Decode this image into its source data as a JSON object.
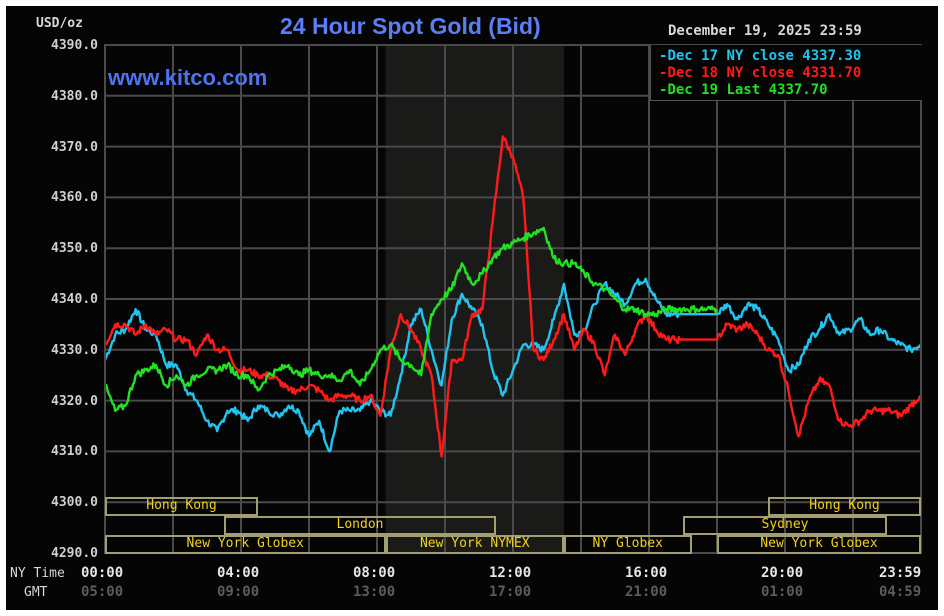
{
  "header": {
    "title": "24 Hour Spot Gold (Bid)",
    "website": "www.kitco.com",
    "units": "USD/oz",
    "datestamp": "December 19, 2025 23:59"
  },
  "legend": [
    {
      "label": "Dec 17 NY close 4337.30",
      "color": "#21c4ef"
    },
    {
      "label": "Dec 18 NY close 4331.70",
      "color": "#ff1a1a"
    },
    {
      "label": "Dec 19 Last 4337.70",
      "color": "#22e022"
    }
  ],
  "axis": {
    "y_labels": [
      "4390.0",
      "4380.0",
      "4370.0",
      "4360.0",
      "4350.0",
      "4340.0",
      "4330.0",
      "4320.0",
      "4310.0",
      "4300.0",
      "4290.0"
    ],
    "x_row_label_ny": "NY Time",
    "x_row_label_gmt": "GMT",
    "x_ny": [
      "00:00",
      "04:00",
      "08:00",
      "12:00",
      "16:00",
      "20:00",
      "23:59"
    ],
    "x_gmt": [
      "05:00",
      "09:00",
      "13:00",
      "17:00",
      "21:00",
      "01:00",
      "04:59"
    ]
  },
  "sessions": [
    {
      "name": "Hong Kong",
      "row": 0,
      "start": 0,
      "end": 4.5
    },
    {
      "name": "London",
      "row": 1,
      "start": 3.5,
      "end": 11.5
    },
    {
      "name": "New York Globex",
      "row": 2,
      "start": 0,
      "end": 8.25
    },
    {
      "name": "New York NYMEX",
      "row": 2,
      "start": 8.25,
      "end": 13.5
    },
    {
      "name": "NY Globex",
      "row": 2,
      "start": 13.5,
      "end": 17.25
    },
    {
      "name": "New York Globex",
      "row": 2,
      "start": 18.0,
      "end": 24
    },
    {
      "name": "Hong Kong",
      "row": 0,
      "start": 19.5,
      "end": 24
    },
    {
      "name": "Sydney",
      "row": 1,
      "start": 17.0,
      "end": 23.0
    }
  ],
  "chart_data": {
    "type": "line",
    "title": "24 Hour Spot Gold (Bid)",
    "xlabel": "NY Time / GMT",
    "ylabel": "USD/oz",
    "ylim": [
      4290,
      4390
    ],
    "xlim_hours": [
      0,
      24
    ],
    "x_ticks": [
      "00:00",
      "04:00",
      "08:00",
      "12:00",
      "16:00",
      "20:00",
      "23:59"
    ],
    "grid": true,
    "shaded_region_hours": [
      8.25,
      13.5
    ],
    "legend_position": "top-right",
    "series": [
      {
        "name": "Dec 17 NY close 4337.30",
        "color": "#21c4ef",
        "x": [
          0,
          0.3,
          0.6,
          0.9,
          1.2,
          1.5,
          1.8,
          2.1,
          2.4,
          2.7,
          3.0,
          3.3,
          3.6,
          3.9,
          4.2,
          4.5,
          4.8,
          5.1,
          5.4,
          5.7,
          6.0,
          6.3,
          6.6,
          6.9,
          7.2,
          7.5,
          7.8,
          8.1,
          8.4,
          8.7,
          9.0,
          9.3,
          9.6,
          9.9,
          10.2,
          10.5,
          10.8,
          11.1,
          11.4,
          11.7,
          12.0,
          12.3,
          12.6,
          12.9,
          13.2,
          13.5,
          13.8,
          14.1,
          14.4,
          14.7,
          15.0,
          15.3,
          15.6,
          15.9,
          16.2,
          16.5,
          16.8,
          17.1,
          17.4,
          17.7,
          18.0,
          18.3,
          18.6,
          18.9,
          19.2,
          19.5,
          19.8,
          20.1,
          20.4,
          20.7,
          21.0,
          21.3,
          21.6,
          21.9,
          22.2,
          22.5,
          22.8,
          23.1,
          23.4,
          23.7,
          23.98
        ],
        "values": [
          4328,
          4333,
          4334,
          4338,
          4334,
          4333,
          4327,
          4327,
          4322,
          4320,
          4316,
          4314,
          4318,
          4318,
          4316,
          4319,
          4318,
          4317,
          4319,
          4318,
          4313,
          4316,
          4310,
          4318,
          4318,
          4318,
          4320,
          4318,
          4317,
          4325,
          4335,
          4338,
          4330,
          4323,
          4336,
          4341,
          4338,
          4335,
          4326,
          4321,
          4326,
          4331,
          4331,
          4330,
          4336,
          4343,
          4333,
          4334,
          4339,
          4343,
          4341,
          4339,
          4343,
          4344,
          4340,
          4337,
          4337,
          4337,
          4337,
          4337,
          4337,
          4339,
          4336,
          4339,
          4338,
          4335,
          4332,
          4326,
          4327,
          4332,
          4334,
          4337,
          4333,
          4334,
          4336,
          4333,
          4334,
          4332,
          4331,
          4330,
          4331
        ]
      },
      {
        "name": "Dec 18 NY close 4331.70",
        "color": "#ff1a1a",
        "x": [
          0,
          0.3,
          0.6,
          0.9,
          1.2,
          1.5,
          1.8,
          2.1,
          2.4,
          2.7,
          3.0,
          3.3,
          3.6,
          3.9,
          4.2,
          4.5,
          4.8,
          5.1,
          5.4,
          5.7,
          6.0,
          6.3,
          6.6,
          6.9,
          7.2,
          7.5,
          7.8,
          8.1,
          8.4,
          8.7,
          9.0,
          9.3,
          9.6,
          9.9,
          10.2,
          10.5,
          10.8,
          11.1,
          11.4,
          11.7,
          12.0,
          12.3,
          12.6,
          12.9,
          13.2,
          13.5,
          13.8,
          14.1,
          14.4,
          14.7,
          15.0,
          15.3,
          15.6,
          15.9,
          16.2,
          16.5,
          16.8,
          17.1,
          17.4,
          17.7,
          18.0,
          18.3,
          18.6,
          18.9,
          19.2,
          19.5,
          19.8,
          20.1,
          20.4,
          20.7,
          21.0,
          21.3,
          21.6,
          21.9,
          22.2,
          22.5,
          22.8,
          23.1,
          23.4,
          23.7,
          23.98
        ],
        "values": [
          4331,
          4335,
          4335,
          4333,
          4335,
          4333,
          4334,
          4332,
          4332,
          4329,
          4333,
          4330,
          4330,
          4326,
          4326,
          4325,
          4325,
          4324,
          4322,
          4322,
          4323,
          4322,
          4320,
          4321,
          4321,
          4320,
          4321,
          4317,
          4330,
          4337,
          4334,
          4330,
          4325,
          4309,
          4328,
          4328,
          4337,
          4338,
          4355,
          4372,
          4368,
          4360,
          4330,
          4328,
          4332,
          4337,
          4330,
          4334,
          4331,
          4325,
          4333,
          4329,
          4334,
          4337,
          4334,
          4332,
          4332,
          4332,
          4332,
          4332,
          4332,
          4335,
          4334,
          4335,
          4333,
          4330,
          4329,
          4322,
          4313,
          4320,
          4324,
          4323,
          4316,
          4315,
          4316,
          4318,
          4318,
          4318,
          4317,
          4319,
          4321
        ]
      },
      {
        "name": "Dec 19 Last 4337.70",
        "color": "#22e022",
        "x": [
          0,
          0.3,
          0.6,
          0.9,
          1.2,
          1.5,
          1.8,
          2.1,
          2.4,
          2.7,
          3.0,
          3.3,
          3.6,
          3.9,
          4.2,
          4.5,
          4.8,
          5.1,
          5.4,
          5.7,
          6.0,
          6.3,
          6.6,
          6.9,
          7.2,
          7.5,
          7.8,
          8.1,
          8.4,
          8.7,
          9.0,
          9.3,
          9.6,
          9.9,
          10.2,
          10.5,
          10.8,
          11.1,
          11.4,
          11.7,
          12.0,
          12.3,
          12.6,
          12.9,
          13.2,
          13.5,
          13.8,
          14.1,
          14.4,
          14.7,
          15.0,
          15.3,
          15.6,
          15.9,
          16.2,
          16.5,
          16.8,
          17.1,
          17.4,
          17.7,
          18.0
        ],
        "values": [
          4323,
          4318,
          4319,
          4325,
          4326,
          4327,
          4323,
          4325,
          4323,
          4325,
          4326,
          4326,
          4327,
          4325,
          4325,
          4322,
          4325,
          4326,
          4327,
          4325,
          4326,
          4325,
          4325,
          4324,
          4326,
          4323,
          4326,
          4330,
          4331,
          4328,
          4327,
          4325,
          4337,
          4340,
          4342,
          4347,
          4343,
          4345,
          4348,
          4350,
          4351,
          4352,
          4353,
          4354,
          4348,
          4347,
          4347,
          4345,
          4343,
          4342,
          4340,
          4338,
          4338,
          4337,
          4337,
          4338,
          4338,
          4338,
          4338,
          4338,
          4338
        ]
      }
    ]
  }
}
